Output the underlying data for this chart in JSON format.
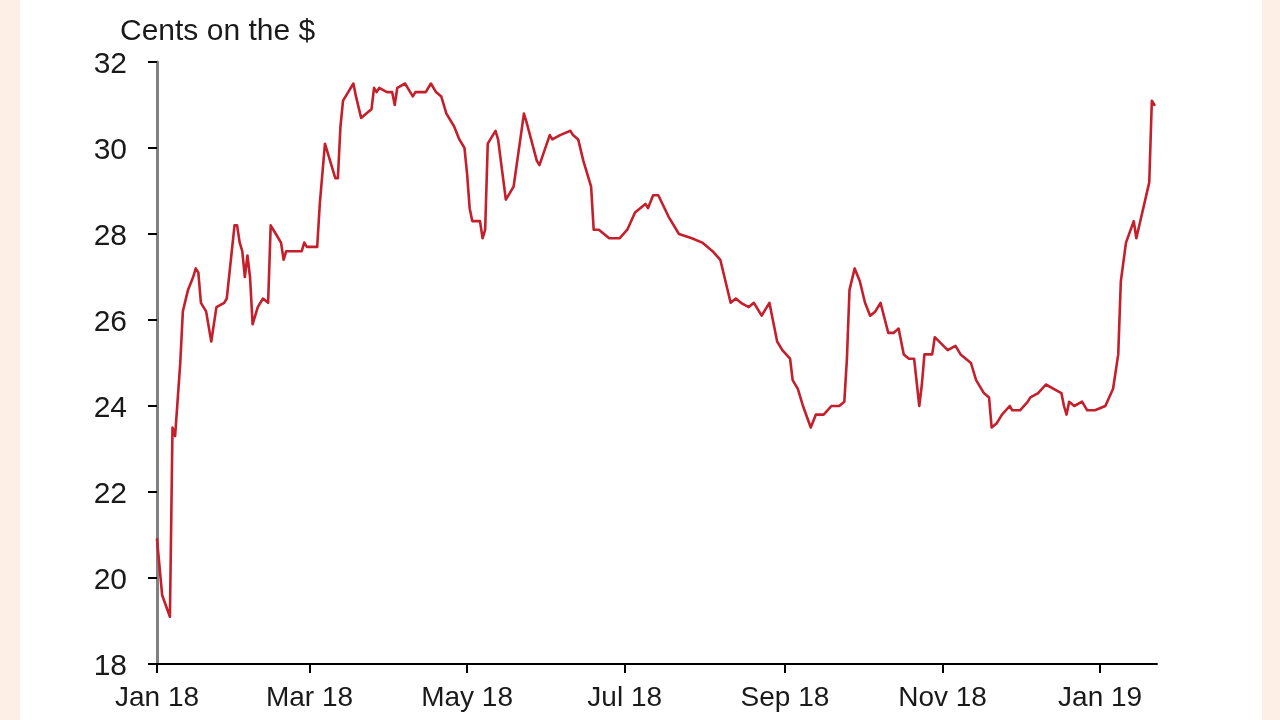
{
  "chart_data": {
    "type": "line",
    "ylabel": "Cents on the $",
    "x": [
      "2018-01-01",
      "2018-01-03",
      "2018-01-06",
      "2018-01-07",
      "2018-01-08",
      "2018-01-10",
      "2018-01-11",
      "2018-01-13",
      "2018-01-15",
      "2018-01-16",
      "2018-01-17",
      "2018-01-18",
      "2018-01-20",
      "2018-01-22",
      "2018-01-24",
      "2018-01-27",
      "2018-01-28",
      "2018-01-31",
      "2018-02-01",
      "2018-02-02",
      "2018-02-03",
      "2018-02-04",
      "2018-02-05",
      "2018-02-06",
      "2018-02-07",
      "2018-02-09",
      "2018-02-11",
      "2018-02-13",
      "2018-02-14",
      "2018-02-16",
      "2018-02-18",
      "2018-02-19",
      "2018-02-20",
      "2018-02-26",
      "2018-02-27",
      "2018-02-28",
      "2018-03-04",
      "2018-03-05",
      "2018-03-07",
      "2018-03-09",
      "2018-03-11",
      "2018-03-12",
      "2018-03-13",
      "2018-03-14",
      "2018-03-16",
      "2018-03-18",
      "2018-03-19",
      "2018-03-21",
      "2018-03-23",
      "2018-03-25",
      "2018-03-26",
      "2018-03-27",
      "2018-03-28",
      "2018-03-31",
      "2018-04-02",
      "2018-04-03",
      "2018-04-04",
      "2018-04-07",
      "2018-04-08",
      "2018-04-10",
      "2018-04-11",
      "2018-04-13",
      "2018-04-15",
      "2018-04-17",
      "2018-04-19",
      "2018-04-21",
      "2018-04-23",
      "2018-04-26",
      "2018-04-28",
      "2018-04-30",
      "2018-05-01",
      "2018-05-02",
      "2018-05-03",
      "2018-05-06",
      "2018-05-07",
      "2018-05-08",
      "2018-05-09",
      "2018-05-11",
      "2018-05-12",
      "2018-05-13",
      "2018-05-16",
      "2018-05-17",
      "2018-05-19",
      "2018-05-23",
      "2018-05-24",
      "2018-05-28",
      "2018-05-29",
      "2018-06-02",
      "2018-06-03",
      "2018-06-06",
      "2018-06-10",
      "2018-06-11",
      "2018-06-13",
      "2018-06-15",
      "2018-06-18",
      "2018-06-19",
      "2018-06-21",
      "2018-06-25",
      "2018-06-29",
      "2018-07-02",
      "2018-07-05",
      "2018-07-07",
      "2018-07-09",
      "2018-07-10",
      "2018-07-12",
      "2018-07-14",
      "2018-07-18",
      "2018-07-22",
      "2018-07-27",
      "2018-07-31",
      "2018-08-04",
      "2018-08-07",
      "2018-08-11",
      "2018-08-13",
      "2018-08-15",
      "2018-08-18",
      "2018-08-20",
      "2018-08-23",
      "2018-08-26",
      "2018-08-29",
      "2018-08-31",
      "2018-09-03",
      "2018-09-04",
      "2018-09-06",
      "2018-09-08",
      "2018-09-11",
      "2018-09-13",
      "2018-09-16",
      "2018-09-19",
      "2018-09-22",
      "2018-09-24",
      "2018-09-25",
      "2018-09-26",
      "2018-09-28",
      "2018-09-30",
      "2018-10-02",
      "2018-10-04",
      "2018-10-06",
      "2018-10-08",
      "2018-10-11",
      "2018-10-13",
      "2018-10-15",
      "2018-10-17",
      "2018-10-19",
      "2018-10-21",
      "2018-10-23",
      "2018-10-24",
      "2018-10-25",
      "2018-10-28",
      "2018-10-29",
      "2018-11-03",
      "2018-11-06",
      "2018-11-08",
      "2018-11-12",
      "2018-11-14",
      "2018-11-17",
      "2018-11-19",
      "2018-11-20",
      "2018-11-22",
      "2018-11-24",
      "2018-11-27",
      "2018-11-28",
      "2018-12-01",
      "2018-12-04",
      "2018-12-05",
      "2018-12-08",
      "2018-12-11",
      "2018-12-14",
      "2018-12-17",
      "2018-12-18",
      "2018-12-19",
      "2018-12-20",
      "2018-12-22",
      "2018-12-25",
      "2018-12-27",
      "2018-12-30",
      "2019-01-03",
      "2019-01-06",
      "2019-01-07",
      "2019-01-08",
      "2019-01-09",
      "2019-01-11",
      "2019-01-14",
      "2019-01-15",
      "2019-01-20",
      "2019-01-21",
      "2019-01-22"
    ],
    "series": [
      {
        "color": "#c41f2b",
        "values": [
          20.9,
          19.6,
          19.1,
          23.5,
          23.3,
          25.0,
          26.2,
          26.7,
          27.0,
          27.2,
          27.1,
          26.4,
          26.2,
          25.5,
          26.3,
          26.4,
          26.5,
          28.2,
          28.2,
          27.8,
          27.6,
          27.0,
          27.5,
          27.0,
          25.9,
          26.3,
          26.5,
          26.4,
          28.2,
          28.0,
          27.8,
          27.4,
          27.6,
          27.6,
          27.8,
          27.7,
          27.7,
          28.7,
          30.1,
          29.7,
          29.3,
          29.3,
          30.5,
          31.1,
          31.3,
          31.5,
          31.2,
          30.7,
          30.8,
          30.9,
          31.4,
          31.3,
          31.4,
          31.3,
          31.3,
          31.0,
          31.4,
          31.5,
          31.4,
          31.2,
          31.3,
          31.3,
          31.3,
          31.5,
          31.3,
          31.2,
          30.8,
          30.5,
          30.2,
          30.0,
          29.4,
          28.6,
          28.3,
          28.3,
          27.9,
          28.1,
          30.1,
          30.3,
          30.4,
          30.2,
          28.8,
          28.9,
          29.1,
          30.8,
          30.6,
          29.7,
          29.6,
          30.3,
          30.2,
          30.3,
          30.4,
          30.3,
          30.2,
          29.7,
          29.1,
          28.1,
          28.1,
          27.9,
          27.9,
          28.1,
          28.5,
          28.6,
          28.7,
          28.6,
          28.9,
          28.9,
          28.4,
          28.0,
          27.9,
          27.8,
          27.6,
          27.4,
          26.4,
          26.5,
          26.4,
          26.3,
          26.4,
          26.1,
          26.4,
          25.5,
          25.3,
          25.1,
          24.6,
          24.4,
          24.0,
          23.5,
          23.8,
          23.8,
          24.0,
          24.0,
          24.1,
          25.1,
          26.7,
          27.2,
          26.9,
          26.4,
          26.1,
          26.2,
          26.4,
          25.7,
          25.7,
          25.8,
          25.2,
          25.1,
          25.1,
          24.0,
          24.5,
          25.2,
          25.2,
          25.6,
          25.3,
          25.4,
          25.2,
          25.0,
          24.6,
          24.3,
          24.2,
          23.5,
          23.6,
          23.8,
          24.0,
          23.9,
          23.9,
          24.1,
          24.2,
          24.3,
          24.5,
          24.4,
          24.3,
          24.0,
          23.8,
          24.1,
          24.0,
          24.1,
          23.9,
          23.9,
          24.0,
          24.4,
          24.8,
          25.2,
          26.9,
          27.8,
          28.3,
          27.9,
          29.2,
          31.1,
          31.0
        ]
      }
    ],
    "xlim": [
      "2018-01-01",
      "2019-01-23"
    ],
    "xticks": [
      {
        "value": "2018-01-01",
        "label": "Jan 18"
      },
      {
        "value": "2018-03-01",
        "label": "Mar 18"
      },
      {
        "value": "2018-05-01",
        "label": "May 18"
      },
      {
        "value": "2018-07-01",
        "label": "Jul 18"
      },
      {
        "value": "2018-09-01",
        "label": "Sep 18"
      },
      {
        "value": "2018-11-01",
        "label": "Nov 18"
      },
      {
        "value": "2019-01-01",
        "label": "Jan 19"
      }
    ],
    "ylim": [
      18,
      32
    ],
    "yticks": [
      18,
      20,
      22,
      24,
      26,
      28,
      30,
      32
    ],
    "grid": false,
    "marker": "none",
    "line_style": "solid"
  }
}
